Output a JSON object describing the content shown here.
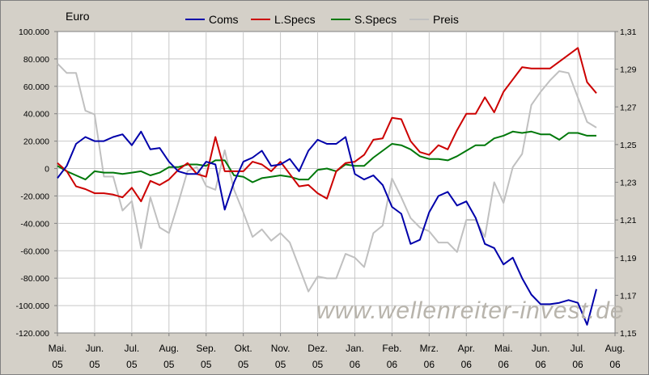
{
  "chart_data": {
    "type": "line",
    "unit_label": "Euro",
    "watermark": "www.wellenreiter-invest.de",
    "x_ticks": [
      [
        "Mai.",
        "05"
      ],
      [
        "Jun.",
        "05"
      ],
      [
        "Jul.",
        "05"
      ],
      [
        "Aug.",
        "05"
      ],
      [
        "Sep.",
        "05"
      ],
      [
        "Okt.",
        "05"
      ],
      [
        "Nov.",
        "05"
      ],
      [
        "Dez.",
        "05"
      ],
      [
        "Jan.",
        "06"
      ],
      [
        "Feb.",
        "06"
      ],
      [
        "Mrz.",
        "06"
      ],
      [
        "Apr.",
        "06"
      ],
      [
        "Mai.",
        "06"
      ],
      [
        "Jun.",
        "06"
      ],
      [
        "Jul.",
        "06"
      ],
      [
        "Aug.",
        "06"
      ]
    ],
    "y_left": {
      "ticks": [
        "100.000",
        "80.000",
        "60.000",
        "40.000",
        "20.000",
        "0",
        "-20.000",
        "-40.000",
        "-60.000",
        "-80.000",
        "-100.000",
        "-120.000"
      ],
      "ylim": [
        -120000,
        100000
      ]
    },
    "y_right": {
      "ticks": [
        "1,31",
        "1,29",
        "1,27",
        "1,25",
        "1,23",
        "1,21",
        "1,19",
        "1,17",
        "1,15"
      ],
      "ylim": [
        1.15,
        1.31
      ]
    },
    "grid": true,
    "legend_position": "top",
    "x": [
      0,
      0.25,
      0.5,
      0.75,
      1,
      1.25,
      1.5,
      1.75,
      2,
      2.25,
      2.5,
      2.75,
      3,
      3.25,
      3.5,
      3.75,
      4,
      4.25,
      4.5,
      4.75,
      5,
      5.25,
      5.5,
      5.75,
      6,
      6.25,
      6.5,
      6.75,
      7,
      7.25,
      7.5,
      7.75,
      8,
      8.25,
      8.5,
      8.75,
      9,
      9.25,
      9.5,
      9.75,
      10,
      10.25,
      10.5,
      10.75,
      11,
      11.25,
      11.5,
      11.75,
      12,
      12.25,
      12.5,
      12.75,
      13,
      13.25,
      13.5,
      13.75,
      14,
      14.25,
      14.5
    ],
    "series": [
      {
        "name": "Coms",
        "color": "#0000aa",
        "axis": "left",
        "values": [
          -7000,
          2000,
          18000,
          23000,
          20000,
          20000,
          23000,
          25000,
          17000,
          27000,
          14000,
          15000,
          5000,
          -2000,
          -4000,
          -4000,
          5000,
          3000,
          -30000,
          -10000,
          5000,
          8000,
          13000,
          2000,
          3000,
          7000,
          -2000,
          13000,
          21000,
          18000,
          18000,
          23000,
          -4000,
          -8000,
          -5000,
          -12000,
          -28000,
          -33000,
          -55000,
          -52000,
          -32000,
          -20000,
          -17000,
          -27000,
          -24000,
          -36000,
          -55000,
          -58000,
          -70000,
          -65000,
          -80000,
          -92000,
          -99000,
          -99000,
          -98000,
          -96000,
          -98000,
          -114000,
          -88000
        ]
      },
      {
        "name": "L.Specs",
        "color": "#cc0000",
        "axis": "left",
        "values": [
          4000,
          -2000,
          -13000,
          -15000,
          -18000,
          -18000,
          -19000,
          -21000,
          -14000,
          -24000,
          -9000,
          -12000,
          -8000,
          -1000,
          4000,
          -4000,
          -6000,
          23000,
          -2000,
          -2000,
          -2000,
          5000,
          3000,
          -2000,
          5000,
          -4000,
          -13000,
          -12000,
          -18000,
          -22000,
          -2000,
          4000,
          5000,
          10000,
          21000,
          22000,
          37000,
          36000,
          20000,
          12000,
          10000,
          17000,
          14000,
          28000,
          40000,
          40000,
          52000,
          41000,
          56000,
          65000,
          74000,
          73000,
          73000,
          73000,
          78000,
          83000,
          88000,
          63000,
          55000
        ]
      },
      {
        "name": "S.Specs",
        "color": "#00780a",
        "axis": "left",
        "values": [
          2000,
          -2000,
          -5000,
          -8000,
          -2000,
          -3000,
          -3000,
          -4000,
          -3000,
          -2000,
          -5000,
          -3000,
          1000,
          1000,
          3000,
          3000,
          2000,
          6000,
          6000,
          -5000,
          -6000,
          -10000,
          -7000,
          -6000,
          -5000,
          -6000,
          -8000,
          -8000,
          -1000,
          0,
          -2000,
          3000,
          2000,
          2000,
          8000,
          13000,
          18000,
          17000,
          14000,
          9000,
          7000,
          7000,
          6000,
          9000,
          13000,
          17000,
          17000,
          22000,
          24000,
          27000,
          26000,
          27000,
          25000,
          25000,
          21000,
          26000,
          26000,
          24000,
          24000
        ]
      },
      {
        "name": "Preis",
        "color": "#c0c0c0",
        "axis": "right",
        "values": [
          1.293,
          1.288,
          1.288,
          1.268,
          1.266,
          1.233,
          1.233,
          1.215,
          1.22,
          1.195,
          1.222,
          1.206,
          1.203,
          1.219,
          1.236,
          1.238,
          1.228,
          1.226,
          1.247,
          1.226,
          1.214,
          1.201,
          1.205,
          1.199,
          1.203,
          1.198,
          1.185,
          1.172,
          1.18,
          1.179,
          1.179,
          1.192,
          1.19,
          1.185,
          1.203,
          1.207,
          1.232,
          1.222,
          1.211,
          1.206,
          1.204,
          1.198,
          1.198,
          1.193,
          1.21,
          1.21,
          1.201,
          1.23,
          1.219,
          1.238,
          1.245,
          1.271,
          1.278,
          1.284,
          1.289,
          1.288,
          1.275,
          1.262,
          1.259
        ]
      }
    ]
  }
}
